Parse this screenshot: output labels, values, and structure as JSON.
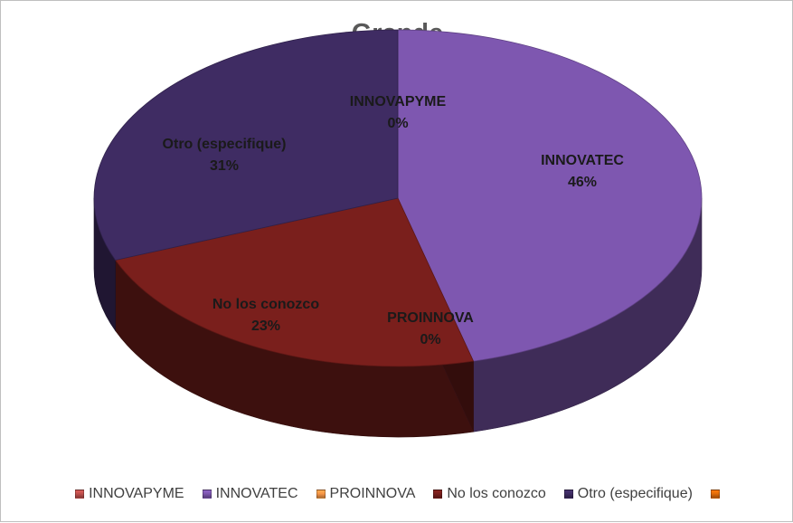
{
  "chart_data": {
    "type": "pie",
    "title": "Grande",
    "categories": [
      "INNOVAPYME",
      "INNOVATEC",
      "PROINNOVA",
      "No los conozco",
      "Otro (especifique)",
      ""
    ],
    "values": [
      0,
      46,
      0,
      23,
      31,
      0
    ],
    "data_labels": [
      {
        "category": "INNOVAPYME",
        "value": "0%"
      },
      {
        "category": "INNOVATEC",
        "value": "46%"
      },
      {
        "category": "PROINNOVA",
        "value": "0%"
      },
      {
        "category": "No los conozco",
        "value": "23%"
      },
      {
        "category": "Otro (especifique)",
        "value": "31%"
      }
    ],
    "colors": [
      "#c0504d",
      "#7e57b0",
      "#f79646",
      "#7a1f1c",
      "#3f2c63",
      "#e36c09"
    ],
    "style": "3d-pie",
    "legend_position": "bottom"
  }
}
